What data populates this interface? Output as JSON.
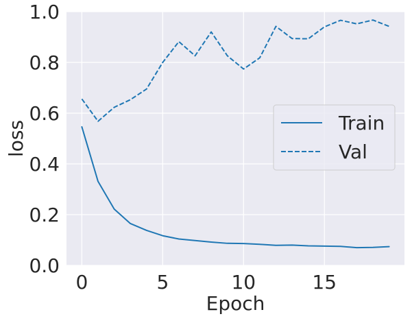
{
  "chart_data": {
    "type": "line",
    "title": "",
    "xlabel": "Epoch",
    "ylabel": "loss",
    "xlim": [
      -0.95,
      19.95
    ],
    "ylim": [
      0.0,
      1.0
    ],
    "x_ticks": [
      0,
      5,
      10,
      15
    ],
    "x_tick_labels": [
      "0",
      "5",
      "10",
      "15"
    ],
    "y_ticks": [
      0.0,
      0.2,
      0.4,
      0.6,
      0.8,
      1.0
    ],
    "y_tick_labels": [
      "0.0",
      "0.2",
      "0.4",
      "0.6",
      "0.8",
      "1.0"
    ],
    "grid": true,
    "legend_position": "center-right",
    "x": [
      0,
      1,
      2,
      3,
      4,
      5,
      6,
      7,
      8,
      9,
      10,
      11,
      12,
      13,
      14,
      15,
      16,
      17,
      18,
      19
    ],
    "series": [
      {
        "name": "Train",
        "style": "solid",
        "color": "#1f77b4",
        "values": [
          0.546,
          0.331,
          0.222,
          0.165,
          0.138,
          0.117,
          0.104,
          0.098,
          0.092,
          0.087,
          0.086,
          0.083,
          0.079,
          0.08,
          0.077,
          0.076,
          0.075,
          0.07,
          0.071,
          0.074
        ]
      },
      {
        "name": "Val",
        "style": "dashed",
        "color": "#1f77b4",
        "values": [
          0.656,
          0.568,
          0.623,
          0.653,
          0.695,
          0.8,
          0.882,
          0.826,
          0.92,
          0.826,
          0.774,
          0.818,
          0.942,
          0.894,
          0.893,
          0.94,
          0.966,
          0.952,
          0.967,
          0.942
        ]
      }
    ]
  },
  "colors": {
    "plot_background": "#eaeaf2",
    "grid": "#ffffff",
    "text": "#262626",
    "line": "#1f77b4",
    "legend_background": "#eaeaf2",
    "legend_border": "#cccccc"
  }
}
